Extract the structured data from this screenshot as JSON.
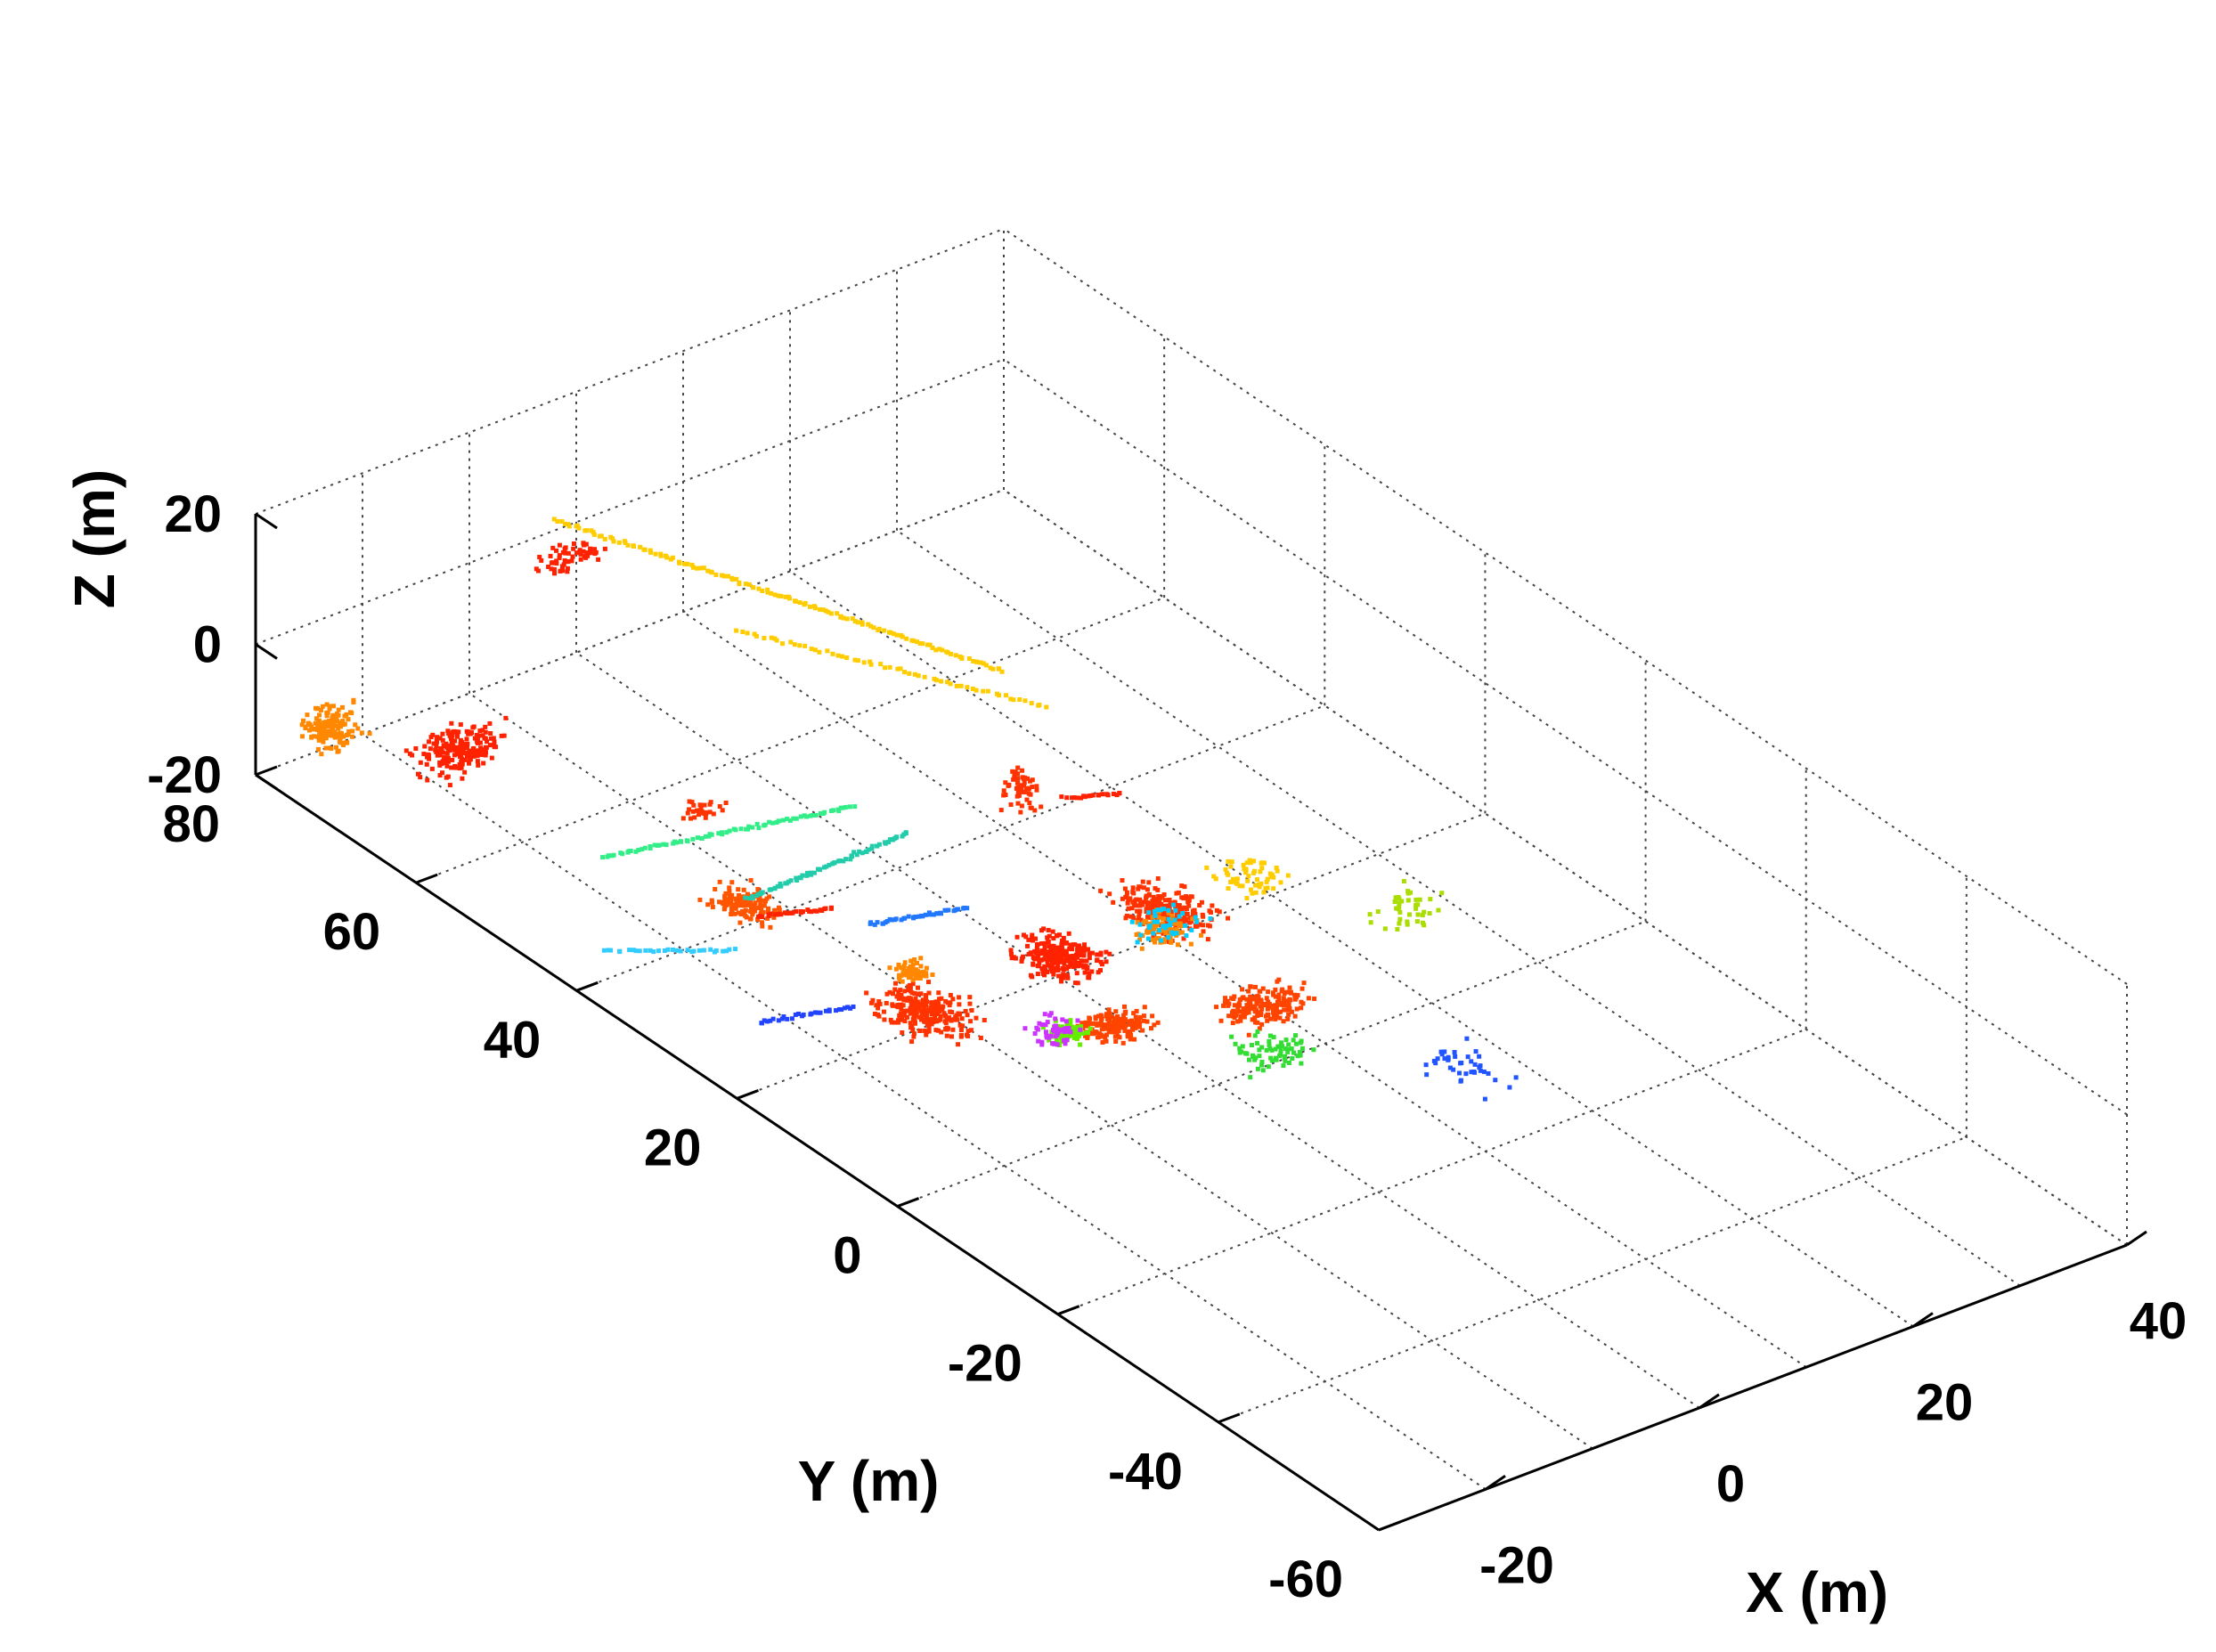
{
  "chart_data": {
    "type": "scatter",
    "projection": "3d",
    "title": "",
    "xlabel": "X (m)",
    "ylabel": "Y (m)",
    "zlabel": "Z (m)",
    "xlim": [
      -30,
      40
    ],
    "ylim": [
      -60,
      80
    ],
    "zlim": [
      -20,
      20
    ],
    "xticks": [
      "-20",
      "0",
      "20",
      "40"
    ],
    "yticks": [
      "-60",
      "-40",
      "-20",
      "0",
      "20",
      "40",
      "60",
      "80"
    ],
    "zticks": [
      "-20",
      "0",
      "20"
    ],
    "grid": true,
    "legend": "none",
    "clusters": [
      {
        "color": "#ff3300",
        "center": [
          -12,
          20,
          -18
        ],
        "spread": [
          4,
          6,
          1.5
        ],
        "count": 260
      },
      {
        "color": "#ff2200",
        "center": [
          0,
          20,
          -17
        ],
        "spread": [
          4,
          5,
          1.5
        ],
        "count": 260
      },
      {
        "color": "#ff3300",
        "center": [
          10,
          20,
          -16
        ],
        "spread": [
          4,
          6,
          1.5
        ],
        "count": 240
      },
      {
        "color": "#ff5500",
        "center": [
          -14,
          40,
          -17
        ],
        "spread": [
          3,
          4,
          1.5
        ],
        "count": 140
      },
      {
        "color": "#ff4400",
        "center": [
          -2,
          10,
          -18
        ],
        "spread": [
          4,
          3,
          1.2
        ],
        "count": 160
      },
      {
        "color": "#ff4400",
        "center": [
          8,
          5,
          -17
        ],
        "spread": [
          5,
          4,
          1.5
        ],
        "count": 180
      },
      {
        "color": "#ff8800",
        "center": [
          -10,
          25,
          -17
        ],
        "spread": [
          2,
          2,
          1.5
        ],
        "count": 60
      },
      {
        "color": "#ff8800",
        "center": [
          8,
          18,
          -16
        ],
        "spread": [
          3,
          3,
          2
        ],
        "count": 80
      },
      {
        "color": "#66ee00",
        "center": [
          -5,
          12,
          -19
        ],
        "spread": [
          2,
          2,
          1
        ],
        "count": 90
      },
      {
        "color": "#33dd33",
        "center": [
          5,
          0,
          -18
        ],
        "spread": [
          4,
          4,
          1
        ],
        "count": 70
      },
      {
        "color": "#cc33ff",
        "center": [
          -6,
          12,
          -18
        ],
        "spread": [
          3,
          3,
          1
        ],
        "count": 50
      },
      {
        "color": "#2255ff",
        "center": [
          15,
          -10,
          -18
        ],
        "spread": [
          4,
          6,
          1
        ],
        "count": 40
      },
      {
        "color": "#ffcc00",
        "center": [
          18,
          20,
          -16
        ],
        "spread": [
          4,
          4,
          2
        ],
        "count": 60
      },
      {
        "color": "#aadd00",
        "center": [
          25,
          10,
          -17
        ],
        "spread": [
          4,
          4,
          1
        ],
        "count": 40
      },
      {
        "color": "#00ccff",
        "center": [
          10,
          20,
          -18
        ],
        "spread": [
          4,
          4,
          1
        ],
        "count": 40
      },
      {
        "color": "#ff2200",
        "center": [
          -20,
          68,
          -12
        ],
        "spread": [
          5,
          3,
          4
        ],
        "count": 200
      },
      {
        "color": "#ff8800",
        "center": [
          -26,
          76,
          -12
        ],
        "spread": [
          3,
          3,
          4
        ],
        "count": 160
      },
      {
        "color": "#ff2200",
        "center": [
          -8,
          70,
          8
        ],
        "spread": [
          4,
          2,
          3
        ],
        "count": 60
      },
      {
        "color": "#ff3300",
        "center": [
          4,
          30,
          -2
        ],
        "spread": [
          2,
          2,
          5
        ],
        "count": 60
      },
      {
        "color": "#ff3300",
        "center": [
          -12,
          48,
          -10
        ],
        "spread": [
          3,
          2,
          1
        ],
        "count": 30
      }
    ],
    "lines": [
      {
        "color": "#ffcc00",
        "from": [
          -8,
          72,
          12
        ],
        "to": [
          10,
          40,
          4
        ],
        "count": 140
      },
      {
        "color": "#ffcc00",
        "from": [
          0,
          60,
          0
        ],
        "to": [
          14,
          40,
          -4
        ],
        "count": 60
      },
      {
        "color": "#33ee88",
        "from": [
          -20,
          50,
          -14
        ],
        "to": [
          -4,
          40,
          -8
        ],
        "count": 80
      },
      {
        "color": "#22ccaa",
        "from": [
          -14,
          40,
          -16
        ],
        "to": [
          -2,
          36,
          -10
        ],
        "count": 70
      },
      {
        "color": "#2277ff",
        "from": [
          -10,
          30,
          -14
        ],
        "to": [
          -4,
          26,
          -12
        ],
        "count": 40
      },
      {
        "color": "#33ccff",
        "from": [
          -26,
          42,
          -18
        ],
        "to": [
          -18,
          36,
          -18
        ],
        "count": 30
      },
      {
        "color": "#2244ff",
        "from": [
          -22,
          28,
          -20
        ],
        "to": [
          -16,
          24,
          -18
        ],
        "count": 30
      },
      {
        "color": "#ff2200",
        "from": [
          -16,
          36,
          -14
        ],
        "to": [
          -12,
          32,
          -12
        ],
        "count": 30
      },
      {
        "color": "#ff2200",
        "from": [
          8,
          30,
          -6
        ],
        "to": [
          12,
          28,
          -6
        ],
        "count": 20
      }
    ]
  }
}
